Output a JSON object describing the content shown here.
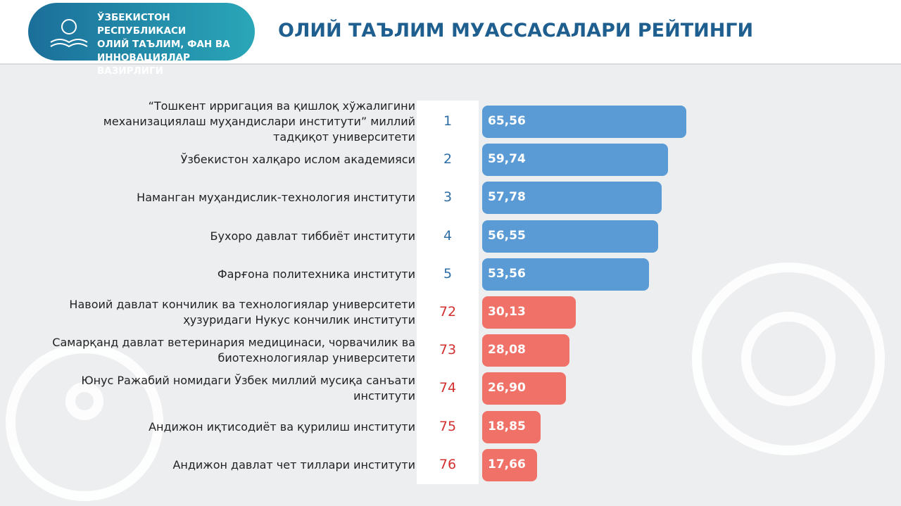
{
  "header": {
    "ministry_lines": [
      "ЎЗБЕКИСТОН РЕСПУБЛИКАСИ",
      "ОЛИЙ ТАЪЛИМ, ФАН ВА",
      "ИННОВАЦИЯЛАР ВАЗИРЛИГИ"
    ]
  },
  "chart_data": {
    "type": "bar",
    "orientation": "horizontal",
    "title": "ОЛИЙ ТАЪЛИМ МУАССАСАЛАРИ РЕЙТИНГИ",
    "categories": [
      "“Тошкент ирригация ва қишлоқ хўжалигини механизациялаш муҳандислари институти” миллий тадқиқот университети",
      "Ўзбекистон халқаро ислом академияси",
      "Наманган муҳандислик-технология институти",
      "Бухоро давлат тиббиёт институти",
      "Фарғона политехника институти",
      "Навоий давлат кончилик ва технологиялар университети ҳузуридаги Нукус кончилик институти",
      "Самарқанд давлат ветеринария медицинаси, чорвачилик ва биотехнологиялар университети",
      "Юнус Ражабий номидаги Ўзбек миллий мусиқа санъати институти",
      "Андижон иқтисодиёт ва қурилиш институти",
      "Андижон давлат чет тиллари институти"
    ],
    "ranks": [
      1,
      2,
      3,
      4,
      5,
      72,
      73,
      74,
      75,
      76
    ],
    "values": [
      65.56,
      59.74,
      57.78,
      56.55,
      53.56,
      30.13,
      28.08,
      26.9,
      18.85,
      17.66
    ],
    "value_labels": [
      "65,56",
      "59,74",
      "57,78",
      "56,55",
      "53,56",
      "30,13",
      "28,08",
      "26,90",
      "18,85",
      "17,66"
    ],
    "colors": [
      "#5b9bd5",
      "#5b9bd5",
      "#5b9bd5",
      "#5b9bd5",
      "#5b9bd5",
      "#f07167",
      "#f07167",
      "#f07167",
      "#f07167",
      "#f07167"
    ],
    "rank_colors": [
      "#2e6da4",
      "#2e6da4",
      "#2e6da4",
      "#2e6da4",
      "#2e6da4",
      "#d32f2f",
      "#d32f2f",
      "#d32f2f",
      "#d32f2f",
      "#d32f2f"
    ]
  }
}
